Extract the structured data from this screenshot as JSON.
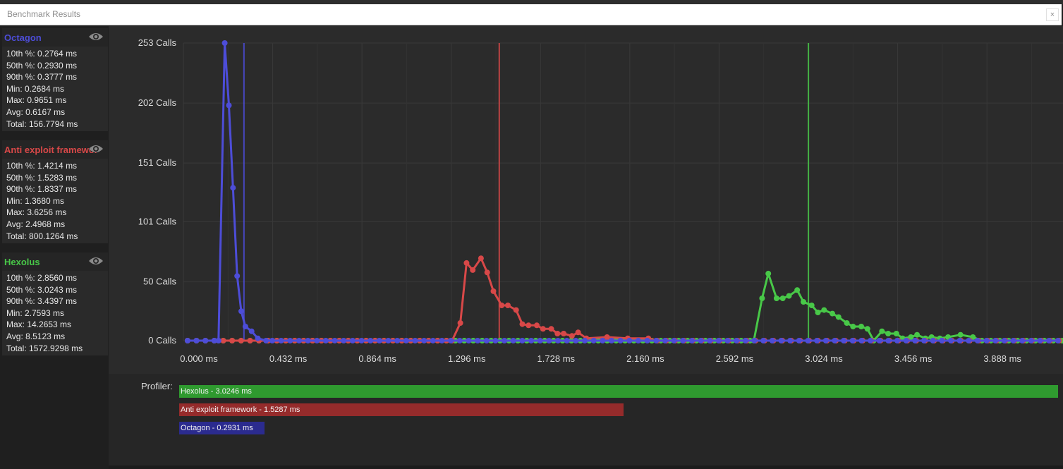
{
  "window": {
    "title": "Benchmark Results",
    "close_label": "×"
  },
  "groups": [
    {
      "name": "Octagon",
      "color": "#4d4dd8",
      "stats": [
        "10th %: 0.2764 ms",
        "50th %: 0.2930 ms",
        "90th %: 0.3777 ms",
        "Min: 0.2684 ms",
        "Max: 0.9651 ms",
        "Avg: 0.6167 ms",
        "Total: 156.7794 ms"
      ]
    },
    {
      "name": "Anti exploit framework",
      "color": "#d84848",
      "stats": [
        "10th %: 1.4214 ms",
        "50th %: 1.5283 ms",
        "90th %: 1.8337 ms",
        "Min: 1.3680 ms",
        "Max: 3.6256 ms",
        "Avg: 2.4968 ms",
        "Total: 800.1264 ms"
      ]
    },
    {
      "name": "Hexolus",
      "color": "#48c848",
      "stats": [
        "10th %: 2.8560 ms",
        "50th %: 3.0243 ms",
        "90th %: 3.4397 ms",
        "Min: 2.7593 ms",
        "Max: 14.2653 ms",
        "Avg: 8.5123 ms",
        "Total: 1572.9298 ms"
      ]
    }
  ],
  "chart_data": {
    "type": "line",
    "x_tick_labels": [
      "0.000 ms",
      "0.432 ms",
      "0.864 ms",
      "1.296 ms",
      "1.728 ms",
      "2.160 ms",
      "2.592 ms",
      "3.024 ms",
      "3.456 ms",
      "3.888 ms"
    ],
    "y_tick_labels": [
      "253 Calls",
      "202 Calls",
      "151 Calls",
      "101 Calls",
      "50 Calls",
      "0 Calls"
    ],
    "x_ticks": [
      0,
      0.432,
      0.864,
      1.296,
      1.728,
      2.16,
      2.592,
      3.024,
      3.456,
      3.888
    ],
    "y_ticks": [
      253,
      202,
      151,
      101,
      50,
      0
    ],
    "xlim": [
      0,
      4.256
    ],
    "ylim": [
      0,
      253
    ],
    "grid": true,
    "series": [
      {
        "name": "Octagon",
        "color": "#4d4dd8",
        "median_line": 0.293,
        "x": [
          0.17,
          0.2,
          0.22,
          0.24,
          0.26,
          0.28,
          0.3,
          0.33,
          0.36,
          0.4,
          0.43
        ],
        "y": [
          0,
          253,
          200,
          130,
          55,
          25,
          12,
          8,
          2,
          0,
          0
        ]
      },
      {
        "name": "Anti exploit framework",
        "color": "#d84848",
        "median_line": 1.5283,
        "x": [
          1.3,
          1.34,
          1.37,
          1.4,
          1.44,
          1.47,
          1.5,
          1.54,
          1.57,
          1.61,
          1.64,
          1.67,
          1.71,
          1.74,
          1.78,
          1.81,
          1.84,
          1.88,
          1.91,
          1.95,
          2.05,
          2.15,
          2.25
        ],
        "y": [
          0,
          15,
          66,
          60,
          70,
          58,
          42,
          30,
          30,
          26,
          14,
          13,
          13,
          10,
          10,
          6,
          6,
          4,
          7,
          2,
          3,
          2,
          2
        ]
      },
      {
        "name": "Hexolus",
        "color": "#48c848",
        "median_line": 3.0243,
        "x": [
          2.76,
          2.8,
          2.83,
          2.87,
          2.9,
          2.93,
          2.97,
          3.0,
          3.04,
          3.07,
          3.1,
          3.14,
          3.17,
          3.21,
          3.24,
          3.28,
          3.31,
          3.34,
          3.38,
          3.41,
          3.45,
          3.48,
          3.52,
          3.55,
          3.59,
          3.62,
          3.66,
          3.7,
          3.76,
          3.82
        ],
        "y": [
          0,
          36,
          57,
          36,
          36,
          38,
          43,
          33,
          30,
          24,
          26,
          23,
          20,
          15,
          12,
          12,
          10,
          0,
          8,
          6,
          6,
          2,
          3,
          5,
          2,
          3,
          2,
          3,
          5,
          3
        ]
      }
    ]
  },
  "profiler": {
    "label": "Profiler:",
    "bars": [
      {
        "label": "Hexolus - 3.0246 ms",
        "color": "#2f9a2f",
        "value": 3.0246
      },
      {
        "label": "Anti exploit framework - 1.5287 ms",
        "color": "#952b2b",
        "value": 1.5287
      },
      {
        "label": "Octagon - 0.2931 ms",
        "color": "#2b2b8f",
        "value": 0.2931
      }
    ]
  }
}
